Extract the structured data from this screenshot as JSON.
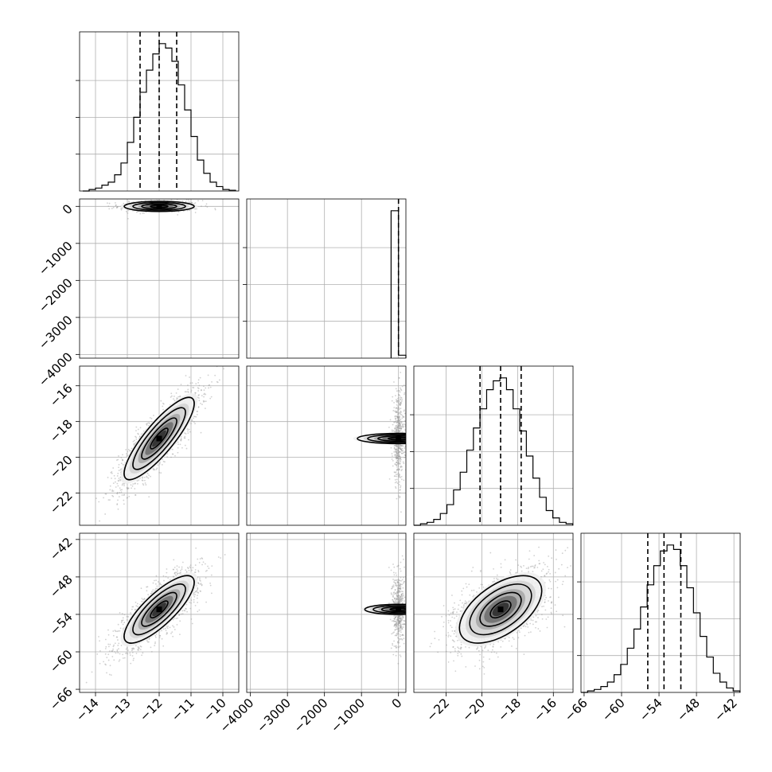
{
  "chart_data": {
    "type": "corner",
    "parameters": [
      {
        "index": 0,
        "range": [
          -14.5,
          -9.5
        ],
        "ticks": [
          -14,
          -13,
          -12,
          -11,
          -10
        ],
        "quantiles": [
          -12.6,
          -12.0,
          -11.45
        ],
        "mean": -12.0,
        "sigma": 0.55
      },
      {
        "index": 1,
        "range": [
          -4100,
          200
        ],
        "ticks": [
          -4000,
          -3000,
          -2000,
          -1000,
          0
        ],
        "quantiles": [
          0
        ],
        "mean": 0,
        "sigma": 10
      },
      {
        "index": 2,
        "range": [
          -23.8,
          -14.9
        ],
        "ticks": [
          -22,
          -20,
          -18,
          -16
        ],
        "quantiles": [
          -20.1,
          -18.95,
          -17.8
        ],
        "mean": -18.95,
        "sigma": 1.15
      },
      {
        "index": 3,
        "range": [
          -66.5,
          -41.0
        ],
        "ticks": [
          -66,
          -60,
          -54,
          -48,
          -42
        ],
        "quantiles": [
          -55.8,
          -53.2,
          -50.5
        ],
        "mean": -53.2,
        "sigma": 2.7
      }
    ],
    "histograms": [
      {
        "param": 0,
        "bins": [
          -14.4,
          -14.2,
          -14.0,
          -13.8,
          -13.6,
          -13.4,
          -13.2,
          -13.0,
          -12.8,
          -12.6,
          -12.4,
          -12.2,
          -12.0,
          -11.8,
          -11.6,
          -11.4,
          -11.2,
          -11.0,
          -10.8,
          -10.6,
          -10.4,
          -10.2,
          -10.0,
          -9.8,
          -9.6
        ],
        "counts": [
          0,
          0.01,
          0.02,
          0.04,
          0.06,
          0.11,
          0.19,
          0.33,
          0.5,
          0.67,
          0.82,
          0.93,
          1.0,
          0.97,
          0.88,
          0.72,
          0.55,
          0.37,
          0.21,
          0.12,
          0.06,
          0.03,
          0.01,
          0.005
        ]
      },
      {
        "param": 1,
        "bins": [
          -200,
          0,
          200
        ],
        "counts": [
          1.0,
          0.02
        ]
      },
      {
        "param": 2,
        "bins": [
          -23.8,
          -23.43,
          -23.06,
          -22.69,
          -22.32,
          -21.95,
          -21.58,
          -21.21,
          -20.84,
          -20.47,
          -20.1,
          -19.73,
          -19.36,
          -18.99,
          -18.62,
          -18.25,
          -17.88,
          -17.51,
          -17.14,
          -16.77,
          -16.4,
          -16.03,
          -15.66,
          -15.29,
          -14.92
        ],
        "counts": [
          0,
          0.01,
          0.02,
          0.04,
          0.08,
          0.14,
          0.24,
          0.36,
          0.51,
          0.66,
          0.79,
          0.92,
          0.98,
          1.0,
          0.92,
          0.79,
          0.64,
          0.47,
          0.32,
          0.19,
          0.1,
          0.05,
          0.02,
          0.01
        ]
      },
      {
        "param": 3,
        "bins": [
          -66.5,
          -65.44,
          -64.38,
          -63.32,
          -62.26,
          -61.2,
          -60.14,
          -59.08,
          -58.02,
          -56.96,
          -55.9,
          -54.84,
          -53.78,
          -52.72,
          -51.66,
          -50.6,
          -49.54,
          -48.48,
          -47.42,
          -46.36,
          -45.3,
          -44.24,
          -43.18,
          -42.12,
          -41.06
        ],
        "counts": [
          0,
          0.01,
          0.02,
          0.04,
          0.07,
          0.12,
          0.19,
          0.3,
          0.43,
          0.58,
          0.73,
          0.86,
          0.96,
          1.0,
          0.97,
          0.86,
          0.71,
          0.54,
          0.38,
          0.24,
          0.13,
          0.07,
          0.03,
          0.01
        ]
      }
    ],
    "pairs": [
      {
        "row": 1,
        "col": 0,
        "correlation": 0.0
      },
      {
        "row": 2,
        "col": 0,
        "correlation": 0.85
      },
      {
        "row": 2,
        "col": 1,
        "correlation": 0.0
      },
      {
        "row": 3,
        "col": 0,
        "correlation": 0.8
      },
      {
        "row": 3,
        "col": 1,
        "correlation": 0.0
      },
      {
        "row": 3,
        "col": 2,
        "correlation": 0.55
      }
    ],
    "contour_levels": [
      0.5,
      1.0,
      1.5,
      2.0
    ],
    "grid": true,
    "title": "",
    "xlabel": "",
    "ylabel": ""
  }
}
